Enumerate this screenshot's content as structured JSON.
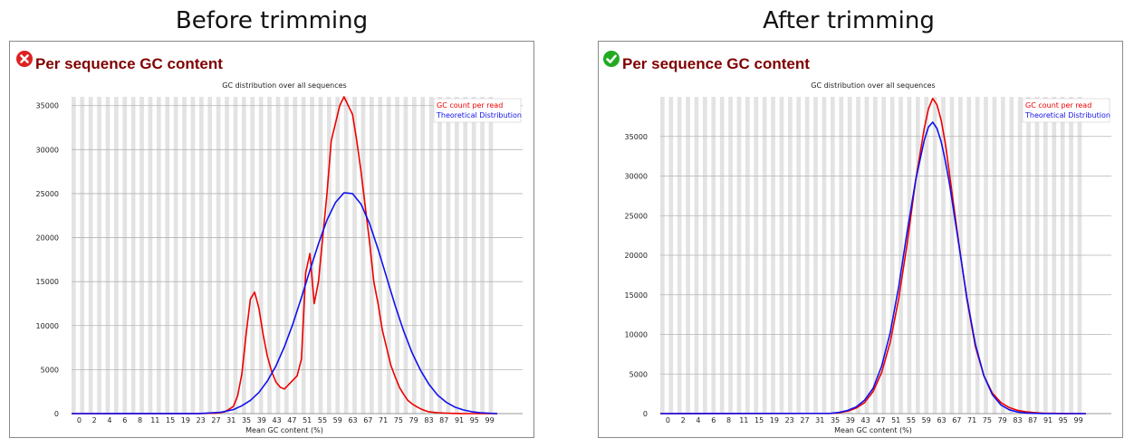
{
  "panels": [
    {
      "heading": "Before trimming",
      "status": "fail",
      "status_icon": "error-x-icon",
      "status_color": "#dd2222",
      "module_title": "Per sequence GC content"
    },
    {
      "heading": "After trimming",
      "status": "pass",
      "status_icon": "check-mark-icon",
      "status_color": "#22aa22",
      "module_title": "Per sequence GC content"
    }
  ],
  "chart_data": [
    {
      "type": "line",
      "title": "GC distribution over all sequences",
      "xlabel": "Mean GC content (%)",
      "ylabel": "",
      "xlim": [
        0,
        100
      ],
      "ylim": [
        0,
        36000
      ],
      "yticks": [
        0,
        5000,
        10000,
        15000,
        20000,
        25000,
        30000,
        35000
      ],
      "xtick_labels": [
        "0",
        "2",
        "4",
        "6",
        "8",
        "11",
        "15",
        "19",
        "23",
        "27",
        "31",
        "35",
        "39",
        "43",
        "47",
        "51",
        "55",
        "59",
        "63",
        "67",
        "71",
        "75",
        "79",
        "83",
        "87",
        "91",
        "95",
        "99"
      ],
      "grid": true,
      "legend_position": "top-right",
      "series": [
        {
          "name": "GC count per read",
          "color": "#ee0000",
          "x": [
            0,
            30,
            34,
            36,
            38,
            39,
            40,
            41,
            42,
            43,
            44,
            45,
            46,
            47,
            48,
            49,
            50,
            51,
            52,
            53,
            54,
            55,
            56,
            57,
            58,
            59,
            60,
            61,
            62,
            63,
            64,
            65,
            66,
            67,
            68,
            69,
            70,
            71,
            72,
            73,
            74,
            75,
            76,
            77,
            78,
            79,
            80,
            81,
            82,
            83,
            84,
            86,
            88,
            90,
            92,
            95,
            100
          ],
          "y": [
            0,
            0,
            50,
            200,
            800,
            2000,
            4500,
            9000,
            13000,
            13800,
            12000,
            9000,
            6500,
            4800,
            3600,
            3000,
            2800,
            3300,
            3800,
            4300,
            6200,
            16000,
            18200,
            12500,
            15000,
            20000,
            25000,
            31000,
            33000,
            35000,
            36000,
            35000,
            34000,
            31000,
            27500,
            23500,
            19500,
            15000,
            12500,
            9500,
            7500,
            5500,
            4200,
            3000,
            2200,
            1500,
            1100,
            800,
            550,
            350,
            200,
            100,
            50,
            20,
            5,
            0,
            0
          ]
        },
        {
          "name": "Theoretical Distribution",
          "color": "#1111ee",
          "x": [
            0,
            30,
            35,
            38,
            40,
            42,
            44,
            46,
            48,
            50,
            52,
            54,
            56,
            58,
            60,
            62,
            64,
            66,
            68,
            70,
            72,
            74,
            76,
            78,
            80,
            82,
            84,
            86,
            88,
            90,
            92,
            94,
            96,
            100
          ],
          "y": [
            0,
            10,
            150,
            450,
            900,
            1500,
            2400,
            3700,
            5400,
            7600,
            10200,
            13200,
            16300,
            19300,
            22000,
            24000,
            25100,
            25000,
            23800,
            21600,
            18700,
            15500,
            12300,
            9400,
            6900,
            4900,
            3300,
            2100,
            1300,
            750,
            420,
            220,
            100,
            0
          ]
        }
      ]
    },
    {
      "type": "line",
      "title": "GC distribution over all sequences",
      "xlabel": "Mean GC content (%)",
      "ylabel": "",
      "xlim": [
        0,
        100
      ],
      "ylim": [
        0,
        40000
      ],
      "yticks": [
        0,
        5000,
        10000,
        15000,
        20000,
        25000,
        30000,
        35000
      ],
      "xtick_labels": [
        "0",
        "2",
        "4",
        "6",
        "8",
        "11",
        "15",
        "19",
        "23",
        "27",
        "31",
        "35",
        "39",
        "43",
        "47",
        "51",
        "55",
        "59",
        "63",
        "67",
        "71",
        "75",
        "79",
        "83",
        "87",
        "91",
        "95",
        "99"
      ],
      "grid": true,
      "legend_position": "top-right",
      "series": [
        {
          "name": "GC count per read",
          "color": "#ee0000",
          "x": [
            0,
            40,
            42,
            44,
            46,
            48,
            50,
            52,
            54,
            56,
            58,
            60,
            62,
            63,
            64,
            65,
            66,
            67,
            68,
            70,
            72,
            74,
            76,
            78,
            80,
            82,
            84,
            86,
            88,
            90,
            92,
            95,
            100
          ],
          "y": [
            0,
            20,
            100,
            300,
            700,
            1400,
            2800,
            5200,
            9000,
            14500,
            21500,
            29500,
            36000,
            38500,
            39800,
            39000,
            37000,
            34000,
            30000,
            22000,
            14500,
            8500,
            4800,
            2600,
            1400,
            750,
            400,
            220,
            120,
            60,
            30,
            10,
            0
          ]
        },
        {
          "name": "Theoretical Distribution",
          "color": "#1111ee",
          "x": [
            0,
            40,
            42,
            44,
            46,
            48,
            50,
            52,
            54,
            56,
            58,
            60,
            62,
            63,
            64,
            65,
            66,
            67,
            68,
            70,
            72,
            74,
            76,
            78,
            80,
            82,
            84,
            86,
            88,
            90,
            92,
            95,
            100
          ],
          "y": [
            0,
            30,
            150,
            400,
            850,
            1700,
            3200,
            6000,
            10200,
            16000,
            23000,
            29500,
            34500,
            36200,
            36800,
            36000,
            34300,
            31800,
            28800,
            21800,
            14700,
            8800,
            4800,
            2400,
            1100,
            480,
            200,
            80,
            30,
            10,
            3,
            0,
            0
          ]
        }
      ]
    }
  ]
}
